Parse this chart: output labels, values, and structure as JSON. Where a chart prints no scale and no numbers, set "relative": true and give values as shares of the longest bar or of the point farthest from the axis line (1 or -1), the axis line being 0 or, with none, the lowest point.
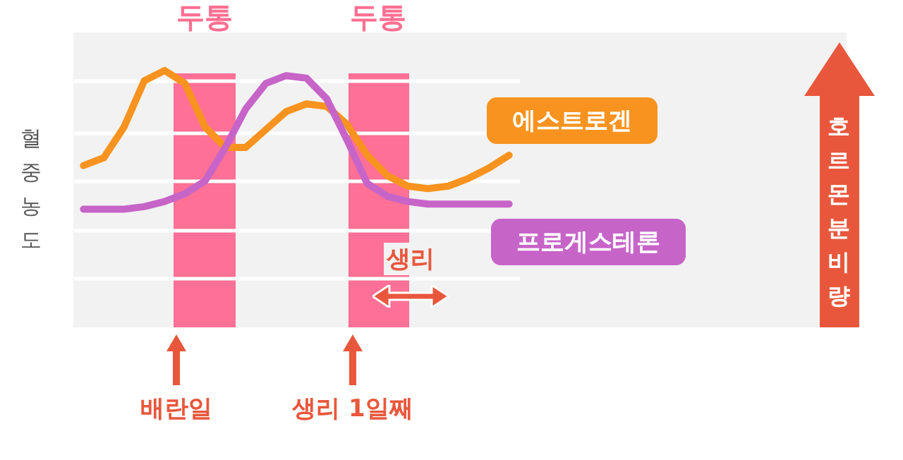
{
  "chart_data": {
    "type": "line",
    "relative": true,
    "ylabel": "혈중농도",
    "grid": true,
    "categories": [
      null,
      null,
      null,
      null,
      null,
      null,
      null,
      null,
      null,
      null,
      null,
      null,
      null,
      null,
      null,
      null,
      null,
      null,
      null,
      null,
      null,
      null
    ],
    "series": [
      {
        "name": "에스트로겐",
        "color": "#f7931e",
        "values": [
          0.63,
          0.66,
          0.78,
          0.96,
          1.0,
          0.95,
          0.78,
          0.7,
          0.7,
          0.77,
          0.84,
          0.87,
          0.86,
          0.79,
          0.67,
          0.59,
          0.55,
          0.54,
          0.55,
          0.58,
          0.62,
          0.67
        ]
      },
      {
        "name": "프로게스테론",
        "color": "#c764c8",
        "values": [
          0.46,
          0.46,
          0.46,
          0.47,
          0.49,
          0.52,
          0.57,
          0.7,
          0.85,
          0.95,
          0.98,
          0.97,
          0.89,
          0.73,
          0.56,
          0.51,
          0.49,
          0.48,
          0.48,
          0.48,
          0.48,
          0.48
        ]
      }
    ],
    "annotations": [
      "두통",
      "두통",
      "배란일",
      "생리 1일째",
      "생리",
      "호르몬분비량"
    ]
  }
}
